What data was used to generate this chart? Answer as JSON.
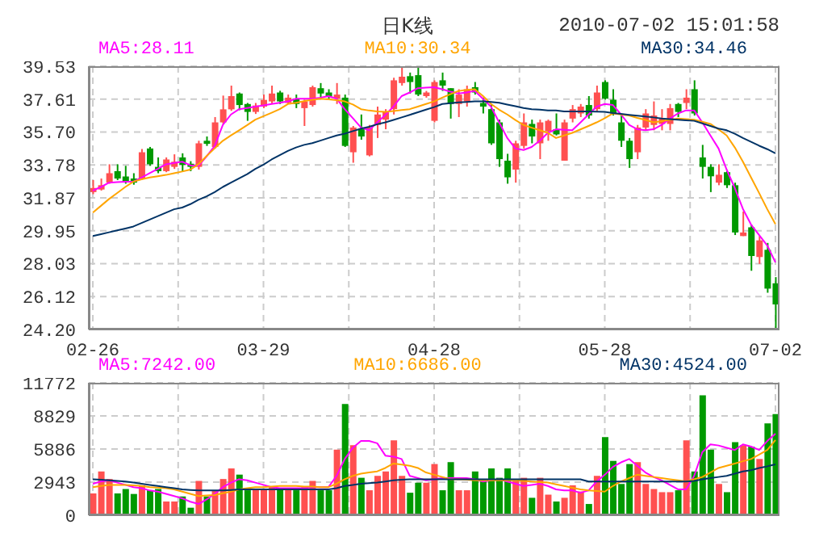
{
  "chart_data": [
    {
      "type": "candlestick",
      "title": "日K线",
      "annotations": [
        "2010-07-02 15:01:58"
      ],
      "categories": [
        "02-26",
        null,
        null,
        null,
        null,
        null,
        null,
        null,
        null,
        null,
        null,
        null,
        null,
        null,
        null,
        null,
        null,
        null,
        null,
        null,
        null,
        "03-29",
        null,
        null,
        null,
        null,
        null,
        null,
        null,
        null,
        null,
        null,
        null,
        null,
        null,
        null,
        null,
        null,
        null,
        null,
        null,
        null,
        "04-28",
        null,
        null,
        null,
        null,
        null,
        null,
        null,
        null,
        null,
        null,
        null,
        null,
        null,
        null,
        null,
        null,
        null,
        null,
        null,
        null,
        "05-28",
        null,
        null,
        null,
        null,
        null,
        null,
        null,
        null,
        null,
        null,
        null,
        null,
        null,
        null,
        null,
        null,
        null,
        null,
        null,
        null,
        "07-02"
      ],
      "ohlc": [
        [
          32.2,
          32.9,
          32.08,
          32.44
        ],
        [
          32.35,
          32.99,
          32.29,
          32.6
        ],
        [
          32.75,
          33.82,
          32.69,
          33.3
        ],
        [
          33.42,
          33.82,
          32.9,
          32.99
        ],
        [
          33.11,
          33.73,
          32.69,
          32.81
        ],
        [
          32.99,
          33.3,
          32.63,
          32.75
        ],
        [
          32.99,
          34.71,
          32.93,
          34.52
        ],
        [
          34.74,
          34.83,
          33.73,
          33.82
        ],
        [
          33.67,
          34.22,
          33.3,
          33.42
        ],
        [
          33.42,
          34.22,
          33.36,
          34.1
        ],
        [
          33.67,
          34.4,
          33.55,
          33.97
        ],
        [
          34.22,
          34.46,
          33.42,
          33.79
        ],
        [
          33.85,
          34.0,
          33.42,
          33.67
        ],
        [
          33.67,
          35.19,
          33.51,
          35.04
        ],
        [
          35.19,
          35.44,
          34.89,
          35.01
        ],
        [
          34.83,
          36.57,
          34.74,
          36.26
        ],
        [
          36.26,
          37.82,
          36.17,
          37.02
        ],
        [
          37.02,
          38.4,
          36.93,
          37.79
        ],
        [
          37.94,
          38.0,
          36.97,
          37.27
        ],
        [
          37.33,
          37.39,
          36.35,
          36.87
        ],
        [
          36.87,
          37.39,
          36.75,
          37.24
        ],
        [
          37.18,
          37.88,
          37.09,
          37.57
        ],
        [
          37.48,
          38.4,
          37.33,
          37.94
        ],
        [
          38.0,
          38.1,
          37.33,
          37.48
        ],
        [
          37.39,
          37.88,
          37.33,
          37.7
        ],
        [
          37.64,
          37.88,
          37.09,
          37.33
        ],
        [
          37.09,
          37.58,
          36.05,
          37.48
        ],
        [
          37.27,
          38.4,
          37.18,
          38.31
        ],
        [
          38.25,
          38.55,
          37.64,
          37.94
        ],
        [
          38.0,
          38.19,
          37.64,
          37.76
        ],
        [
          37.64,
          38.55,
          37.33,
          37.88
        ],
        [
          37.7,
          37.88,
          34.83,
          34.89
        ],
        [
          34.52,
          36.05,
          33.91,
          35.96
        ],
        [
          35.86,
          36.72,
          35.25,
          35.44
        ],
        [
          34.34,
          36.11,
          34.28,
          35.96
        ],
        [
          36.11,
          37.18,
          35.35,
          36.72
        ],
        [
          36.42,
          37.03,
          35.86,
          36.87
        ],
        [
          37.03,
          38.86,
          36.72,
          38.71
        ],
        [
          38.55,
          39.53,
          38.4,
          38.92
        ],
        [
          38.95,
          39.16,
          37.94,
          38.61
        ],
        [
          39.01,
          39.53,
          37.79,
          37.88
        ],
        [
          37.79,
          38.09,
          37.7,
          38.0
        ],
        [
          36.35,
          38.71,
          36.26,
          38.61
        ],
        [
          38.71,
          39.16,
          38.09,
          38.4
        ],
        [
          38.25,
          38.25,
          36.48,
          37.33
        ],
        [
          37.33,
          38.19,
          36.57,
          37.88
        ],
        [
          37.48,
          38.4,
          37.18,
          38.19
        ],
        [
          38.31,
          38.61,
          37.88,
          38.0
        ],
        [
          37.39,
          37.7,
          36.78,
          37.18
        ],
        [
          37.03,
          37.33,
          34.95,
          35.04
        ],
        [
          36.26,
          36.42,
          33.67,
          34.12
        ],
        [
          34.03,
          34.43,
          32.69,
          33.06
        ],
        [
          33.51,
          35.19,
          32.75,
          35.04
        ],
        [
          34.89,
          36.78,
          34.74,
          36.26
        ],
        [
          36.17,
          36.42,
          35.04,
          35.44
        ],
        [
          35.04,
          36.42,
          34.12,
          36.26
        ],
        [
          35.74,
          36.42,
          35.19,
          36.35
        ],
        [
          35.86,
          36.78,
          35.5,
          35.56
        ],
        [
          34.03,
          36.42,
          34.03,
          36.26
        ],
        [
          36.48,
          37.27,
          36.26,
          37.03
        ],
        [
          36.78,
          37.33,
          36.57,
          37.18
        ],
        [
          37.27,
          37.79,
          36.48,
          36.66
        ],
        [
          37.03,
          38.4,
          36.9,
          38.0
        ],
        [
          38.61,
          38.71,
          37.58,
          37.64
        ],
        [
          37.58,
          38.19,
          36.66,
          36.78
        ],
        [
          36.26,
          36.66,
          34.83,
          35.19
        ],
        [
          35.19,
          35.35,
          33.61,
          34.12
        ],
        [
          34.52,
          36.11,
          34.12,
          35.96
        ],
        [
          35.96,
          37.03,
          35.8,
          36.78
        ],
        [
          36.11,
          37.48,
          35.8,
          36.66
        ],
        [
          36.17,
          37.03,
          35.8,
          36.48
        ],
        [
          36.17,
          37.33,
          35.8,
          37.09
        ],
        [
          37.33,
          37.39,
          36.57,
          36.87
        ],
        [
          37.39,
          38.19,
          37.03,
          37.7
        ],
        [
          38.19,
          38.71,
          36.66,
          36.78
        ],
        [
          34.22,
          34.95,
          32.99,
          33.67
        ],
        [
          33.67,
          33.82,
          32.2,
          33.12
        ],
        [
          32.75,
          33.82,
          32.6,
          33.21
        ],
        [
          33.36,
          33.42,
          32.44,
          32.6
        ],
        [
          32.6,
          32.75,
          29.7,
          29.85
        ],
        [
          29.64,
          31.07,
          29.64,
          29.85
        ],
        [
          30.15,
          30.31,
          27.62,
          28.48
        ],
        [
          28.42,
          29.64,
          28.02,
          29.39
        ],
        [
          28.84,
          29.24,
          26.34,
          26.58
        ],
        [
          26.89,
          27.25,
          24.2,
          25.66
        ]
      ],
      "colors": [
        "#ff5050",
        "#ff5050",
        "#ff5050",
        "#009900",
        "#009900",
        "#009900",
        "#ff5050",
        "#009900",
        "#009900",
        "#ff5050",
        "#ff5050",
        "#009900",
        "#009900",
        "#ff5050",
        "#009900",
        "#ff5050",
        "#ff5050",
        "#ff5050",
        "#009900",
        "#009900",
        "#ff5050",
        "#ff5050",
        "#ff5050",
        "#009900",
        "#ff5050",
        "#009900",
        "#ff5050",
        "#ff5050",
        "#009900",
        "#009900",
        "#ff5050",
        "#009900",
        "#ff5050",
        "#009900",
        "#ff5050",
        "#ff5050",
        "#ff5050",
        "#ff5050",
        "#ff5050",
        "#009900",
        "#009900",
        "#ff5050",
        "#ff5050",
        "#009900",
        "#009900",
        "#ff5050",
        "#ff5050",
        "#009900",
        "#009900",
        "#009900",
        "#009900",
        "#009900",
        "#ff5050",
        "#ff5050",
        "#009900",
        "#ff5050",
        "#ff5050",
        "#009900",
        "#ff5050",
        "#ff5050",
        "#ff5050",
        "#009900",
        "#ff5050",
        "#009900",
        "#009900",
        "#009900",
        "#009900",
        "#ff5050",
        "#ff5050",
        "#ff5050",
        "#ff5050",
        "#ff5050",
        "#009900",
        "#ff5050",
        "#009900",
        "#009900",
        "#009900",
        "#ff5050",
        "#009900",
        "#009900",
        "#ff5050",
        "#009900",
        "#ff5050",
        "#009900",
        "#009900"
      ],
      "series": [
        {
          "type": "line",
          "name": "MA5:28.11",
          "color": "#ff00ff",
          "values": [
            32.29,
            32.5,
            32.75,
            32.78,
            32.8,
            32.81,
            33.05,
            33.3,
            33.55,
            33.82,
            33.9,
            33.97,
            33.76,
            33.73,
            34.28,
            34.89,
            36.11,
            36.72,
            37.03,
            37.1,
            37.18,
            37.25,
            37.33,
            37.4,
            37.48,
            37.64,
            37.64,
            37.64,
            37.7,
            37.79,
            37.64,
            37.03,
            36.5,
            35.96,
            35.8,
            36.26,
            36.7,
            37.18,
            37.79,
            38.0,
            38.25,
            38.28,
            38.31,
            38.19,
            38.05,
            37.94,
            38.0,
            38.09,
            37.64,
            37.18,
            36.26,
            35.35,
            34.74,
            34.65,
            34.83,
            35.19,
            35.65,
            35.86,
            35.83,
            35.8,
            36.25,
            36.72,
            37.18,
            37.33,
            37.27,
            36.72,
            36.11,
            35.86,
            35.8,
            35.86,
            36.11,
            36.48,
            36.78,
            36.96,
            36.96,
            36.26,
            35.5,
            34.74,
            33.51,
            32.44,
            31.22,
            30.31,
            29.7,
            29.09,
            28.11
          ]
        },
        {
          "type": "line",
          "name": "MA10:30.34",
          "color": "#ffa500",
          "values": [
            31.01,
            31.4,
            31.8,
            32.15,
            32.5,
            32.81,
            32.95,
            33.05,
            33.12,
            33.2,
            33.3,
            33.4,
            33.51,
            33.82,
            34.3,
            34.75,
            35.19,
            35.5,
            35.8,
            36.1,
            36.42,
            36.62,
            36.82,
            37.03,
            37.33,
            37.4,
            37.5,
            37.58,
            37.64,
            37.6,
            37.55,
            37.48,
            37.3,
            37.03,
            36.95,
            36.9,
            36.87,
            36.92,
            36.98,
            37.03,
            37.18,
            37.33,
            37.48,
            37.7,
            37.9,
            38.09,
            38.15,
            38.19,
            37.8,
            37.33,
            37.0,
            36.72,
            36.4,
            36.11,
            35.95,
            35.8,
            35.65,
            35.35,
            35.5,
            35.65,
            35.85,
            36.05,
            36.26,
            36.5,
            36.78,
            36.72,
            36.66,
            36.52,
            36.4,
            36.26,
            36.33,
            36.4,
            36.48,
            36.45,
            36.42,
            36.3,
            36.17,
            35.85,
            35.5,
            34.8,
            33.97,
            33.05,
            32.14,
            31.2,
            30.34
          ]
        },
        {
          "type": "line",
          "name": "MA30:34.46",
          "color": "#003366",
          "values": [
            29.64,
            29.75,
            29.86,
            29.97,
            30.08,
            30.2,
            30.4,
            30.6,
            30.8,
            31.0,
            31.2,
            31.3,
            31.5,
            31.75,
            31.95,
            32.2,
            32.5,
            32.75,
            33.0,
            33.25,
            33.55,
            33.8,
            34.1,
            34.35,
            34.6,
            34.8,
            34.95,
            35.05,
            35.2,
            35.35,
            35.5,
            35.6,
            35.75,
            35.9,
            36.0,
            36.15,
            36.26,
            36.4,
            36.55,
            36.7,
            36.85,
            37.0,
            37.15,
            37.33,
            37.38,
            37.42,
            37.45,
            37.48,
            37.48,
            37.45,
            37.4,
            37.3,
            37.2,
            37.1,
            37.03,
            37.0,
            36.95,
            36.95,
            36.9,
            36.9,
            36.9,
            36.9,
            36.88,
            36.87,
            36.8,
            36.75,
            36.7,
            36.65,
            36.6,
            36.55,
            36.48,
            36.45,
            36.42,
            36.38,
            36.35,
            36.2,
            36.05,
            35.9,
            35.8,
            35.6,
            35.35,
            35.13,
            34.9,
            34.7,
            34.46
          ]
        }
      ],
      "ylim": [
        24.2,
        39.53
      ],
      "yticks": [
        {
          "value": 24.2,
          "label": "24.20"
        },
        26.12,
        28.03,
        29.95,
        31.87,
        33.78,
        {
          "value": 35.7,
          "label": "35.70"
        },
        37.61,
        39.53
      ],
      "grid": true,
      "legend": "top"
    },
    {
      "type": "bar",
      "series": [
        {
          "type": "bar",
          "values": [
            1940,
            3890,
            3220,
            1940,
            2330,
            1890,
            2660,
            2220,
            2330,
            1220,
            1220,
            1670,
            670,
            3050,
            1670,
            2220,
            3220,
            4160,
            3610,
            2220,
            2330,
            2330,
            2500,
            2330,
            2330,
            2220,
            2500,
            3050,
            2220,
            2220,
            5830,
            9880,
            6220,
            3330,
            2220,
            3500,
            3890,
            6660,
            3500,
            2000,
            2890,
            2890,
            4550,
            2220,
            4720,
            2220,
            2220,
            3890,
            3050,
            4160,
            3330,
            4160,
            3050,
            3330,
            1550,
            3330,
            1830,
            1220,
            1550,
            2660,
            2110,
            1000,
            3500,
            6940,
            4830,
            2780,
            4550,
            4720,
            2780,
            2330,
            2050,
            2050,
            2220,
            6660,
            3890,
            10660,
            5830,
            2780,
            2050,
            6490,
            6220,
            6110,
            5000,
            8160,
            8990
          ],
          "colors": [
            "#ff5050",
            "#ff5050",
            "#ff5050",
            "#009900",
            "#009900",
            "#009900",
            "#ff5050",
            "#009900",
            "#009900",
            "#ff5050",
            "#ff5050",
            "#009900",
            "#009900",
            "#ff5050",
            "#009900",
            "#ff5050",
            "#ff5050",
            "#ff5050",
            "#009900",
            "#009900",
            "#ff5050",
            "#ff5050",
            "#ff5050",
            "#009900",
            "#ff5050",
            "#009900",
            "#ff5050",
            "#ff5050",
            "#009900",
            "#009900",
            "#ff5050",
            "#009900",
            "#ff5050",
            "#009900",
            "#ff5050",
            "#ff5050",
            "#ff5050",
            "#ff5050",
            "#ff5050",
            "#009900",
            "#009900",
            "#ff5050",
            "#ff5050",
            "#009900",
            "#009900",
            "#ff5050",
            "#ff5050",
            "#009900",
            "#009900",
            "#009900",
            "#009900",
            "#009900",
            "#ff5050",
            "#ff5050",
            "#009900",
            "#ff5050",
            "#ff5050",
            "#009900",
            "#ff5050",
            "#ff5050",
            "#ff5050",
            "#009900",
            "#ff5050",
            "#009900",
            "#009900",
            "#009900",
            "#009900",
            "#ff5050",
            "#ff5050",
            "#ff5050",
            "#ff5050",
            "#ff5050",
            "#009900",
            "#ff5050",
            "#009900",
            "#009900",
            "#009900",
            "#ff5050",
            "#009900",
            "#009900",
            "#ff5050",
            "#009900",
            "#ff5050",
            "#009900",
            "#009900"
          ]
        },
        {
          "type": "line",
          "name": "MA5:7242.00",
          "color": "#ff00ff",
          "values": [
            2800,
            3000,
            3100,
            2900,
            2700,
            2500,
            2400,
            2200,
            2100,
            1900,
            1700,
            1500,
            1200,
            1000,
            1400,
            1900,
            2500,
            2900,
            3200,
            3100,
            2900,
            2700,
            2500,
            2400,
            2400,
            2400,
            2400,
            2500,
            2500,
            2500,
            3500,
            5000,
            6000,
            6600,
            6600,
            6400,
            5300,
            5200,
            5000,
            3500,
            3300,
            3100,
            3200,
            3300,
            3300,
            3300,
            3300,
            3200,
            3000,
            3100,
            3200,
            3000,
            2800,
            2600,
            2700,
            2800,
            2600,
            2300,
            2200,
            2200,
            2000,
            2200,
            3000,
            3600,
            4300,
            4700,
            5000,
            4400,
            3800,
            3400,
            3100,
            2700,
            2300,
            2300,
            3500,
            5600,
            6300,
            6200,
            6000,
            5800,
            6300,
            6100,
            5800,
            6600,
            7242
          ]
        },
        {
          "type": "line",
          "name": "MA10:6686.00",
          "color": "#ffa500",
          "values": [
            2500,
            2600,
            2700,
            2700,
            2700,
            2650,
            2600,
            2500,
            2450,
            2400,
            2300,
            2100,
            1900,
            1700,
            1750,
            1800,
            1950,
            2100,
            2300,
            2400,
            2500,
            2500,
            2550,
            2600,
            2600,
            2600,
            2550,
            2550,
            2500,
            2500,
            2800,
            3200,
            3500,
            3700,
            3800,
            3900,
            4200,
            4600,
            4500,
            4400,
            4200,
            3800,
            3600,
            3400,
            3200,
            3200,
            3150,
            3100,
            3100,
            3100,
            3100,
            3100,
            3100,
            3050,
            3000,
            2950,
            2900,
            2750,
            2600,
            2450,
            2300,
            2200,
            2150,
            2100,
            2600,
            3000,
            3300,
            3600,
            3500,
            3400,
            3300,
            3200,
            3100,
            3000,
            3200,
            3400,
            3800,
            4200,
            4400,
            4600,
            4800,
            5000,
            5400,
            5800,
            6686
          ]
        },
        {
          "type": "line",
          "name": "MA30:4524.00",
          "color": "#003366",
          "values": [
            3200,
            3150,
            3100,
            3050,
            3000,
            2900,
            2800,
            2700,
            2600,
            2500,
            2400,
            2300,
            2250,
            2200,
            2200,
            2200,
            2200,
            2250,
            2300,
            2300,
            2300,
            2300,
            2300,
            2300,
            2300,
            2300,
            2300,
            2300,
            2300,
            2300,
            2400,
            2600,
            2700,
            2800,
            2850,
            2900,
            3000,
            3100,
            3150,
            3200,
            3200,
            3200,
            3200,
            3200,
            3200,
            3200,
            3200,
            3200,
            3200,
            3200,
            3200,
            3200,
            3200,
            3200,
            3200,
            3200,
            3200,
            3200,
            3200,
            3200,
            3200,
            3000,
            3000,
            3000,
            3000,
            3000,
            3000,
            3000,
            3000,
            3000,
            3000,
            3000,
            3000,
            3000,
            3050,
            3200,
            3300,
            3400,
            3500,
            3700,
            3900,
            4000,
            4200,
            4350,
            4524
          ]
        }
      ],
      "ylim": [
        0,
        11772
      ],
      "yticks": [
        0,
        2943,
        5886,
        8829,
        11772
      ],
      "tick_labels": "y",
      "grid": true,
      "legend": "top"
    }
  ]
}
